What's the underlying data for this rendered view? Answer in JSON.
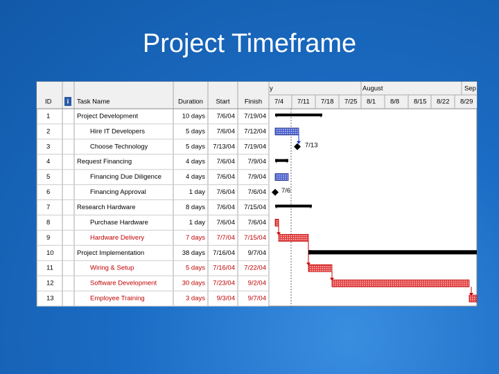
{
  "title": "Project Timeframe",
  "table": {
    "headers": [
      "ID",
      "Task Name",
      "Duration",
      "Start",
      "Finish"
    ],
    "rows": [
      [
        "1",
        "Project Development",
        "10 days",
        "7/6/04",
        "7/19/04"
      ],
      [
        "2",
        "Hire IT Developers",
        "5 days",
        "7/6/04",
        "7/12/04"
      ],
      [
        "3",
        "Choose Technology",
        "5 days",
        "7/13/04",
        "7/19/04"
      ],
      [
        "4",
        "Request Financing",
        "4 days",
        "7/6/04",
        "7/9/04"
      ],
      [
        "5",
        "Financing Due Diligence",
        "4 days",
        "7/6/04",
        "7/9/04"
      ],
      [
        "6",
        "Financing Approval",
        "1 day",
        "7/6/04",
        "7/6/04"
      ],
      [
        "7",
        "Research Hardware",
        "8 days",
        "7/6/04",
        "7/15/04"
      ],
      [
        "8",
        "Purchase Hardware",
        "1 day",
        "7/6/04",
        "7/6/04"
      ],
      [
        "9",
        "Hardware Delivery",
        "7 days",
        "7/7/04",
        "7/15/04"
      ],
      [
        "10",
        "Project Implementation",
        "38 days",
        "7/16/04",
        "9/7/04"
      ],
      [
        "11",
        "Wiring & Setup",
        "5 days",
        "7/16/04",
        "7/22/04"
      ],
      [
        "12",
        "Software Development",
        "30 days",
        "7/23/04",
        "9/2/04"
      ],
      [
        "13",
        "Employee Training",
        "3 days",
        "9/3/04",
        "9/7/04"
      ]
    ]
  },
  "timeline": {
    "months": [
      "y",
      "August",
      "Sep"
    ],
    "weeks": [
      "7/4",
      "7/11",
      "7/18",
      "7/25",
      "8/1",
      "8/8",
      "8/15",
      "8/22",
      "8/29"
    ]
  },
  "milestone_labels": [
    "7/13",
    "7/6"
  ]
}
